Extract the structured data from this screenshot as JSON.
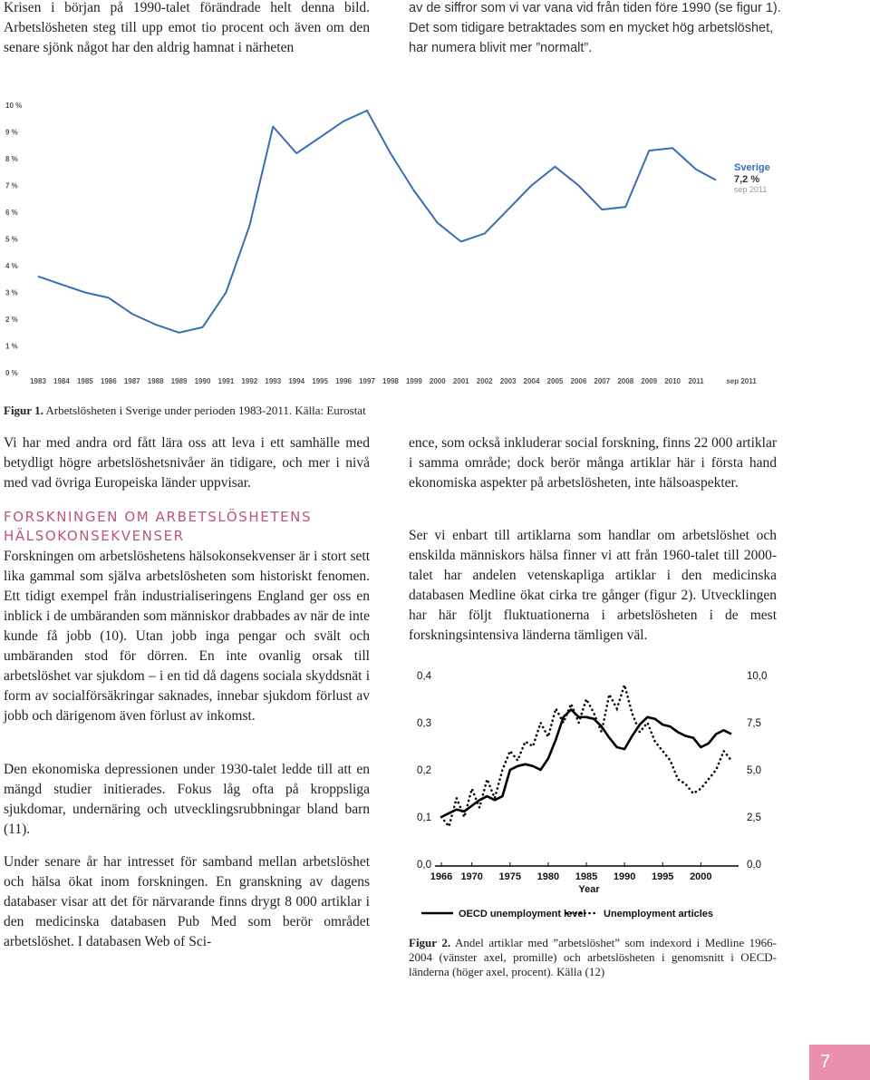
{
  "top": {
    "left": "Krisen i början på 1990-talet förändrade helt denna bild. Arbetslösheten steg till upp emot tio procent och även om den senare sjönk något har den aldrig hamnat i närheten",
    "right": "av de siffror som vi var vana vid från tiden före 1990 (se figur 1). Det som tidigare betraktades som en mycket hög arbetslöshet, har numera blivit mer ”normalt”."
  },
  "left_column": {
    "paragraphs": [
      "Vi har med andra ord fått lära oss att leva i ett samhälle med betydligt högre arbetslöshetsnivåer än tidigare, och mer i nivå med vad övriga Europeiska länder uppvisar.",
      "Forskningen om arbetslöshetens hälsokonsekvenser är i stort sett lika gammal som själva arbetslösheten som historiskt fenomen. Ett tidigt exempel från industrialiseringens England ger oss en inblick i de umbäranden som människor drabbades av när de inte kunde få jobb (10). Utan jobb inga pengar och svält och umbäranden stod för dörren. En inte ovanlig orsak till arbetslöshet var sjukdom – i en tid då dagens sociala skyddsnät i form av socialförsäkringar saknades, innebar sjukdom förlust av jobb och därigenom även förlust av inkomst.",
      "Den ekonomiska depressionen under 1930-talet ledde till att en mängd studier initierades. Fokus låg ofta på kroppsliga sjukdomar, undernäring och utvecklingsrubbningar bland barn (11).",
      "Under senare år har intresset för samband mellan arbetslöshet och hälsa ökat inom forskningen. En granskning av dagens databaser visar att det för närvarande finns drygt 8 000 artiklar i den medicinska databasen Pub Med som berör området arbetslöshet. I databasen Web of Sci-"
    ],
    "heading": "FORSKNINGEN OM ARBETSLÖSHETENS HÄLSOKONSEKVENSER"
  },
  "right_column": {
    "paragraphs": [
      "ence, som också inkluderar social forskning, finns 22 000 artiklar i samma område; dock berör många artiklar här i första hand ekonomiska aspekter på arbetslösheten, inte hälsoaspekter.",
      "Ser vi enbart till artiklarna som handlar om arbetslöshet och enskilda människors hälsa finner vi att från 1960-talet till 2000-talet har andelen vetenskapliga artiklar i den medicinska databasen Medline ökat cirka tre gånger (figur 2). Utvecklingen har här följt fluktuationerna i arbetslösheten i de mest forskningsintensiva länderna tämligen väl."
    ]
  },
  "page_number": "7",
  "chart_data": [
    {
      "type": "line",
      "caption_label": "Figur 1.",
      "caption": "Arbetslösheten i Sverige under perioden 1983-2011. Källa: Eurostat",
      "categories": [
        "1983",
        "1984",
        "1985",
        "1986",
        "1987",
        "1988",
        "1989",
        "1990",
        "1991",
        "1992",
        "1993",
        "1994",
        "1995",
        "1996",
        "1997",
        "1998",
        "1999",
        "2000",
        "2001",
        "2002",
        "2003",
        "2004",
        "2005",
        "2006",
        "2007",
        "2008",
        "2009",
        "2010",
        "2011",
        "sep 2011"
      ],
      "series": [
        {
          "name": "Sverige",
          "color": "#3a6db5",
          "values": [
            3.6,
            3.3,
            3.0,
            2.8,
            2.2,
            1.8,
            1.5,
            1.7,
            3.0,
            5.5,
            9.2,
            8.2,
            8.8,
            9.4,
            9.8,
            8.2,
            6.8,
            5.6,
            4.9,
            5.2,
            6.1,
            7.0,
            7.7,
            7.0,
            6.1,
            6.2,
            8.3,
            8.4,
            7.6,
            7.2
          ],
          "last_label": "7,2 %"
        }
      ],
      "ylim": [
        0,
        10
      ],
      "yticks": [
        {
          "value": 0,
          "label": "0 %"
        },
        {
          "value": 1,
          "label": "1 %"
        },
        {
          "value": 2,
          "label": "2 %"
        },
        {
          "value": 3,
          "label": "3 %"
        },
        {
          "value": 4,
          "label": "4 %"
        },
        {
          "value": 5,
          "label": "5 %"
        },
        {
          "value": 6,
          "label": "6 %"
        },
        {
          "value": 7,
          "label": "7 %"
        },
        {
          "value": 8,
          "label": "8 %"
        },
        {
          "value": 9,
          "label": "9 %"
        },
        {
          "value": 10,
          "label": "10 %"
        }
      ],
      "grid": false
    },
    {
      "type": "line",
      "caption_label": "Figur 2.",
      "caption": "Andel artiklar med ”arbetslöshet” som indexord i Medline 1966-2004 (vänster axel, promille) och arbetslösheten i genomsnitt i OECD-länderna (höger axel, procent). Källa (12)",
      "x_label": "Year",
      "x": [
        1966,
        1967,
        1968,
        1969,
        1970,
        1971,
        1972,
        1973,
        1974,
        1975,
        1976,
        1977,
        1978,
        1979,
        1980,
        1981,
        1982,
        1983,
        1984,
        1985,
        1986,
        1987,
        1988,
        1989,
        1990,
        1991,
        1992,
        1993,
        1994,
        1995,
        1996,
        1997,
        1998,
        1999,
        2000,
        2001,
        2002,
        2003,
        2004
      ],
      "series": [
        {
          "name": "OECD unemployment level",
          "color": "#000000",
          "linestyle": "solid",
          "axis": "y2",
          "values": [
            2.5,
            2.7,
            2.9,
            2.8,
            3.1,
            3.4,
            3.6,
            3.4,
            3.6,
            5.0,
            5.2,
            5.3,
            5.2,
            5.0,
            5.6,
            6.6,
            7.8,
            8.2,
            7.8,
            7.8,
            7.7,
            7.3,
            6.7,
            6.2,
            6.1,
            6.8,
            7.4,
            7.8,
            7.7,
            7.4,
            7.3,
            7.0,
            6.8,
            6.7,
            6.2,
            6.4,
            6.9,
            7.1,
            6.9
          ]
        },
        {
          "name": "Unemployment articles",
          "color": "#000000",
          "linestyle": "dotted",
          "values": [
            0.1,
            0.08,
            0.14,
            0.1,
            0.16,
            0.12,
            0.18,
            0.14,
            0.2,
            0.24,
            0.22,
            0.26,
            0.25,
            0.3,
            0.27,
            0.33,
            0.3,
            0.34,
            0.3,
            0.35,
            0.32,
            0.28,
            0.36,
            0.33,
            0.38,
            0.32,
            0.28,
            0.3,
            0.26,
            0.24,
            0.22,
            0.18,
            0.17,
            0.15,
            0.16,
            0.18,
            0.2,
            0.24,
            0.22
          ]
        }
      ],
      "xlim": [
        1966,
        2004
      ],
      "xticks": [
        1966,
        1970,
        1975,
        1980,
        1985,
        1990,
        1995,
        2000
      ],
      "ylim": [
        0,
        0.4
      ],
      "yticks": [
        {
          "value": 0,
          "label": "0,0"
        },
        {
          "value": 0.1,
          "label": "0,1"
        },
        {
          "value": 0.2,
          "label": "0,2"
        },
        {
          "value": 0.3,
          "label": "0,3"
        },
        {
          "value": 0.4,
          "label": "0,4"
        }
      ],
      "y2lim": [
        0,
        10
      ],
      "y2ticks": [
        {
          "value": 0,
          "label": "0,0"
        },
        {
          "value": 2.5,
          "label": "2,5"
        },
        {
          "value": 5,
          "label": "5,0"
        },
        {
          "value": 7.5,
          "label": "7,5"
        },
        {
          "value": 10,
          "label": "10,0"
        }
      ],
      "legend": "bottom"
    }
  ]
}
